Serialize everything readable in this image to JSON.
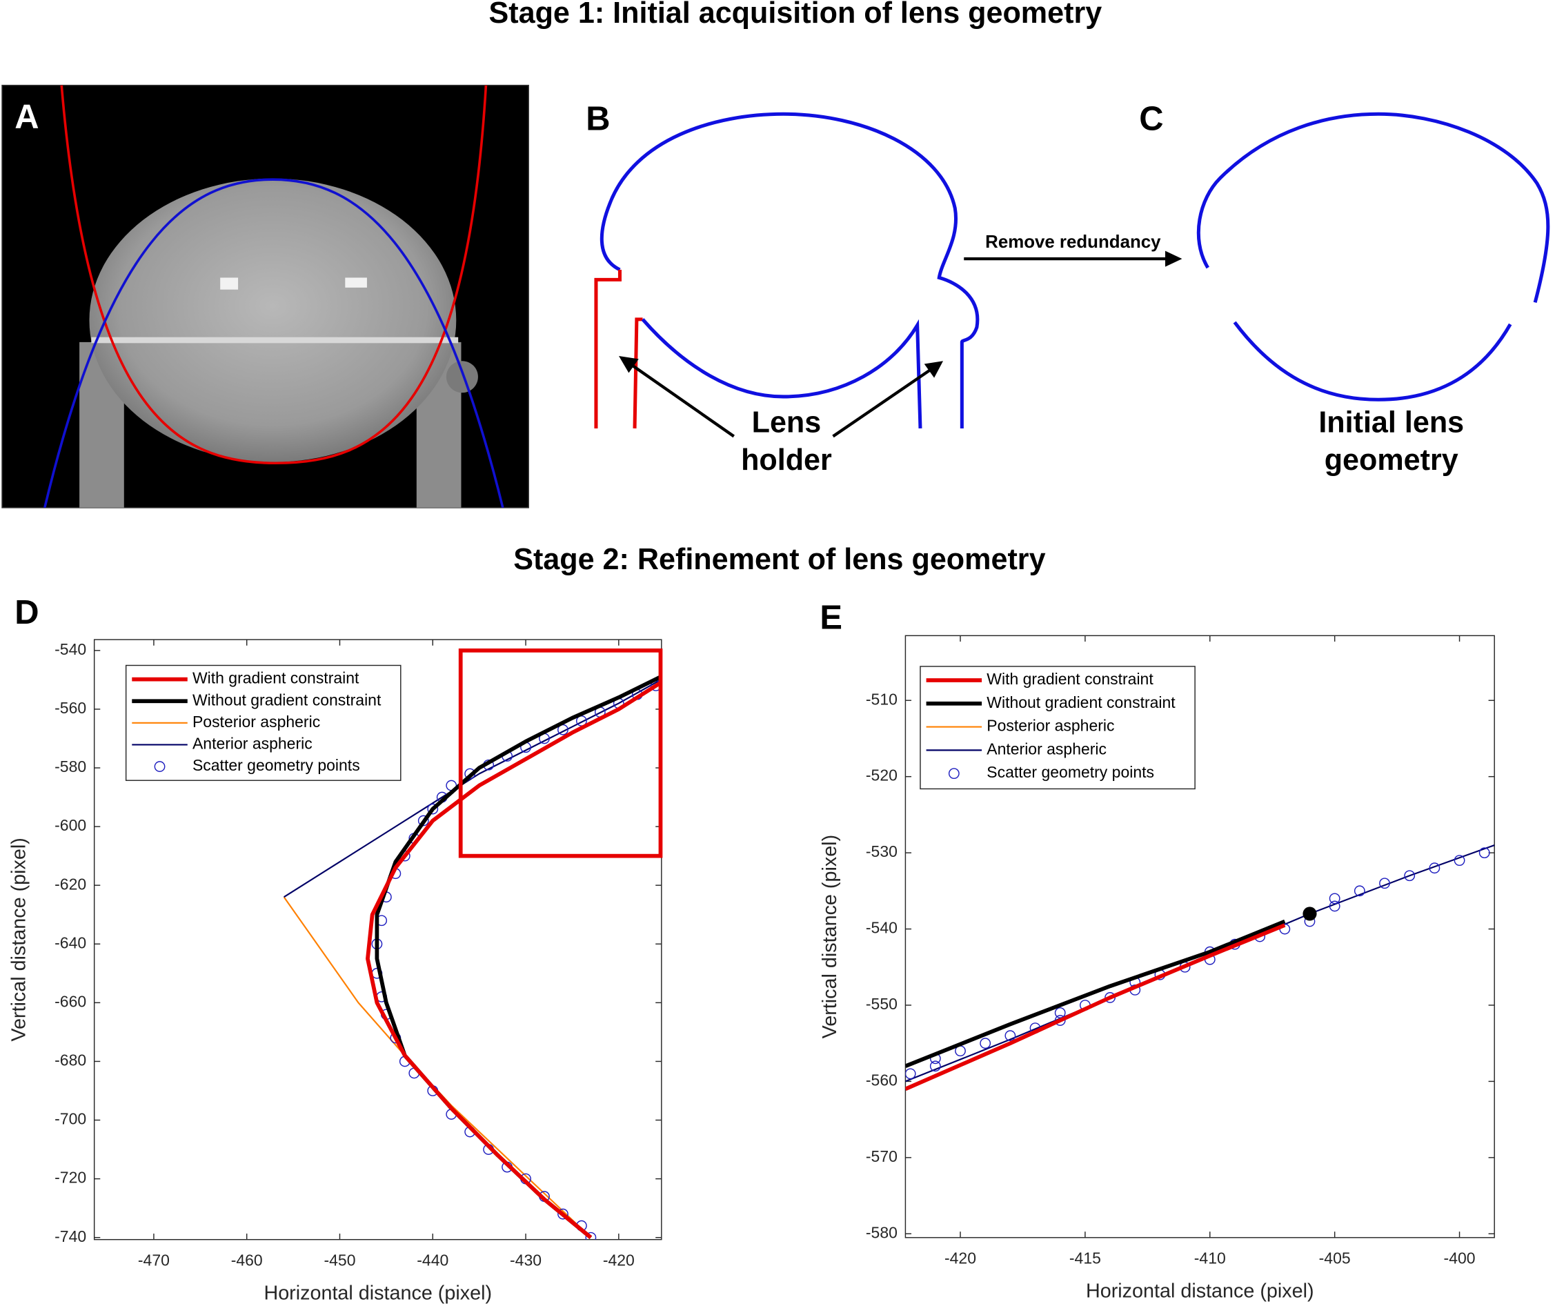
{
  "figure": {
    "stage1_title": "Stage 1: Initial acquisition of lens geometry",
    "stage2_title": "Stage 2: Refinement of lens geometry",
    "panels": [
      "A",
      "B",
      "C"
    ],
    "remove_redundancy": "Remove redundancy",
    "lens_holder": [
      "Lens",
      "holder"
    ],
    "initial_geometry": [
      "Initial lens",
      "geometry"
    ]
  },
  "chart_data": [
    {
      "type": "line",
      "panel_label": "D",
      "xlabel": "Horizontal distance (pixel)",
      "ylabel": "Vertical distance (pixel)",
      "xlim": [
        -476.4,
        -415.4
      ],
      "ylim": [
        -740.7,
        -536.3
      ],
      "xticks": [
        -470,
        -460,
        -450,
        -440,
        -430,
        -420
      ],
      "yticks": [
        -740,
        -720,
        -700,
        -680,
        -660,
        -640,
        -620,
        -600,
        -580,
        -560,
        -540
      ],
      "legend": "upper left",
      "highlight_box": {
        "color": "#e60000",
        "xlim": [
          -437,
          -415.5
        ],
        "ylim": [
          -610,
          -540
        ]
      },
      "series": [
        {
          "name": "With gradient constraint",
          "style": "line",
          "color": "#e60000",
          "width": 4,
          "x": [
            -415.5,
            -420,
            -425,
            -430,
            -435,
            -440,
            -444,
            -446.5,
            -447,
            -446,
            -443,
            -438,
            -433,
            -428,
            -423
          ],
          "values": [
            -551,
            -560,
            -568,
            -577,
            -586,
            -598,
            -614,
            -630,
            -645,
            -660,
            -678,
            -696,
            -712,
            -727,
            -740
          ]
        },
        {
          "name": "Without gradient constraint",
          "style": "line",
          "color": "#000000",
          "width": 4,
          "x": [
            -415.5,
            -420,
            -425,
            -430,
            -435,
            -440,
            -444,
            -446,
            -446,
            -445,
            -443,
            -438,
            -433,
            -428,
            -423
          ],
          "values": [
            -549,
            -556,
            -563,
            -571,
            -580,
            -594,
            -612,
            -630,
            -645,
            -660,
            -678,
            -696,
            -712,
            -727,
            -740
          ]
        },
        {
          "name": "Posterior aspheric",
          "style": "line",
          "color": "#ff8000",
          "width": 1.5,
          "x": [
            -456,
            -452,
            -448,
            -443,
            -438,
            -433,
            -428,
            -423
          ],
          "values": [
            -624,
            -642,
            -660,
            -678,
            -695,
            -710,
            -725,
            -740
          ]
        },
        {
          "name": "Anterior aspheric",
          "style": "line",
          "color": "#000066",
          "width": 1.5,
          "x": [
            -456,
            -450,
            -445,
            -440,
            -435,
            -430,
            -425,
            -420,
            -415.5
          ],
          "values": [
            -624,
            -612,
            -602,
            -592,
            -582,
            -574,
            -566,
            -558,
            -550
          ]
        },
        {
          "name": "Scatter geometry points",
          "style": "markers",
          "color": "#1f1fbf",
          "width": 1,
          "x": [
            -416,
            -418,
            -420,
            -422,
            -424,
            -426,
            -428,
            -430,
            -432,
            -434,
            -436,
            -438,
            -439,
            -440,
            -441,
            -442,
            -443,
            -444,
            -445,
            -445.5,
            -446,
            -446,
            -445.5,
            -445,
            -444,
            -443,
            -442,
            -440,
            -438,
            -436,
            -434,
            -432,
            -430,
            -428,
            -426,
            -424,
            -423
          ],
          "values": [
            -552,
            -555,
            -558,
            -561,
            -564,
            -567,
            -570,
            -573,
            -576,
            -579,
            -582,
            -586,
            -590,
            -594,
            -598,
            -604,
            -610,
            -616,
            -624,
            -632,
            -640,
            -650,
            -658,
            -664,
            -672,
            -680,
            -684,
            -690,
            -698,
            -704,
            -710,
            -716,
            -720,
            -726,
            -732,
            -736,
            -740
          ]
        }
      ]
    },
    {
      "type": "line",
      "panel_label": "E",
      "xlabel": "Horizontal distance (pixel)",
      "ylabel": "Vertical distance (pixel)",
      "xlim": [
        -422.2,
        -398.6
      ],
      "ylim": [
        -580.5,
        -501.5
      ],
      "xticks": [
        -420,
        -415,
        -410,
        -405,
        -400
      ],
      "yticks": [
        -580,
        -570,
        -560,
        -550,
        -540,
        -530,
        -520,
        -510
      ],
      "legend": "upper left",
      "highlight_point": {
        "color": "#000000",
        "x": -406,
        "y": -538
      },
      "series": [
        {
          "name": "With gradient constraint",
          "style": "line",
          "color": "#e60000",
          "width": 4,
          "x": [
            -422.2,
            -418,
            -414,
            -410,
            -407
          ],
          "values": [
            -561,
            -555,
            -549,
            -543.5,
            -539.5
          ]
        },
        {
          "name": "Without gradient constraint",
          "style": "line",
          "color": "#000000",
          "width": 4,
          "x": [
            -422.2,
            -418,
            -414,
            -410,
            -407
          ],
          "values": [
            -558,
            -552.5,
            -547.5,
            -543,
            -539
          ]
        },
        {
          "name": "Posterior aspheric",
          "style": "line",
          "color": "#ff8000",
          "width": 1.5,
          "x": [],
          "values": []
        },
        {
          "name": "Anterior aspheric",
          "style": "line",
          "color": "#000066",
          "width": 1.5,
          "x": [
            -422.2,
            -418,
            -414,
            -410,
            -406,
            -402,
            -398.6
          ],
          "values": [
            -560,
            -554.5,
            -549,
            -543.5,
            -538,
            -533,
            -529
          ]
        },
        {
          "name": "Scatter geometry points",
          "style": "markers",
          "color": "#1f1fbf",
          "width": 1,
          "x": [
            -422,
            -421,
            -421,
            -420,
            -419,
            -418,
            -417,
            -416,
            -416,
            -415,
            -414,
            -413,
            -413,
            -412,
            -411,
            -410,
            -410,
            -409,
            -408,
            -407,
            -406,
            -405,
            -405,
            -404,
            -403,
            -402,
            -401,
            -400,
            -399
          ],
          "values": [
            -559,
            -558,
            -557,
            -556,
            -555,
            -554,
            -553,
            -552,
            -551,
            -550,
            -549,
            -548,
            -547,
            -546,
            -545,
            -544,
            -543,
            -542,
            -541,
            -540,
            -539,
            -537,
            -536,
            -535,
            -534,
            -533,
            -532,
            -531,
            -530
          ]
        }
      ]
    }
  ]
}
